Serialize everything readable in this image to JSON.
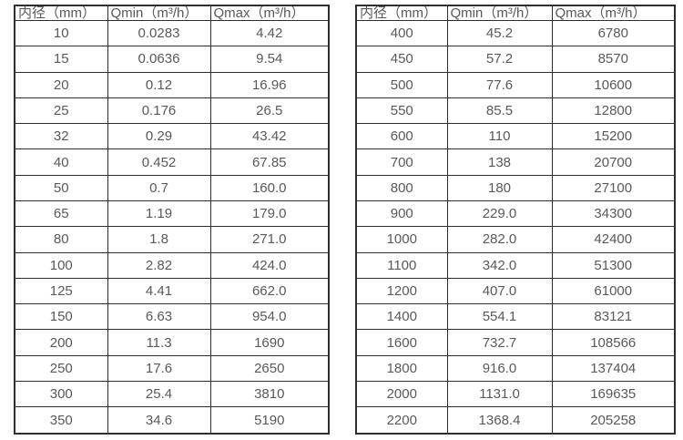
{
  "page": {
    "background": "#ffffff"
  },
  "colors": {
    "border": "#2e2e2e",
    "text": "#595959"
  },
  "chart_data": {
    "type": "table",
    "title": "",
    "tables": [
      {
        "name": "flow-spec-table-small-diameters",
        "headers": [
          "内径（mm）",
          "Qmin（m³/h）",
          "Qmax（m³/h）"
        ],
        "rows": [
          [
            "10",
            "0.0283",
            "4.42"
          ],
          [
            "15",
            "0.0636",
            "9.54"
          ],
          [
            "20",
            "0.12",
            "16.96"
          ],
          [
            "25",
            "0.176",
            "26.5"
          ],
          [
            "32",
            "0.29",
            "43.42"
          ],
          [
            "40",
            "0.452",
            "67.85"
          ],
          [
            "50",
            "0.7",
            "160.0"
          ],
          [
            "65",
            "1.19",
            "179.0"
          ],
          [
            "80",
            "1.8",
            "271.0"
          ],
          [
            "100",
            "2.82",
            "424.0"
          ],
          [
            "125",
            "4.41",
            "662.0"
          ],
          [
            "150",
            "6.63",
            "954.0"
          ],
          [
            "200",
            "11.3",
            "1690"
          ],
          [
            "250",
            "17.6",
            "2650"
          ],
          [
            "300",
            "25.4",
            "3810"
          ],
          [
            "350",
            "34.6",
            "5190"
          ]
        ]
      },
      {
        "name": "flow-spec-table-large-diameters",
        "headers": [
          "内径（mm）",
          "Qmin（m³/h）",
          "Qmax（m³/h）"
        ],
        "rows": [
          [
            "400",
            "45.2",
            "6780"
          ],
          [
            "450",
            "57.2",
            "8570"
          ],
          [
            "500",
            "77.6",
            "10600"
          ],
          [
            "550",
            "85.5",
            "12800"
          ],
          [
            "600",
            "110",
            "15200"
          ],
          [
            "700",
            "138",
            "20700"
          ],
          [
            "800",
            "180",
            "27100"
          ],
          [
            "900",
            "229.0",
            "34300"
          ],
          [
            "1000",
            "282.0",
            "42400"
          ],
          [
            "1100",
            "342.0",
            "51300"
          ],
          [
            "1200",
            "407.0",
            "61000"
          ],
          [
            "1400",
            "554.1",
            "83121"
          ],
          [
            "1600",
            "732.7",
            "108566"
          ],
          [
            "1800",
            "916.0",
            "137404"
          ],
          [
            "2000",
            "1131.0",
            "169635"
          ],
          [
            "2200",
            "1368.4",
            "205258"
          ]
        ]
      }
    ]
  }
}
